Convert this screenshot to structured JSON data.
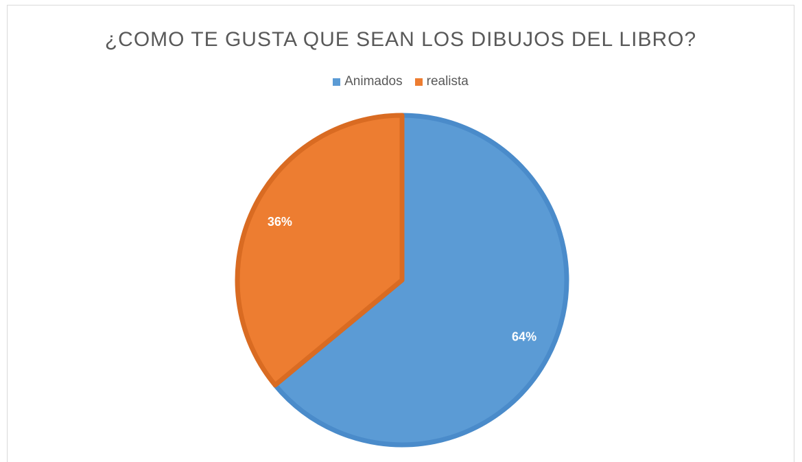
{
  "chart_data": {
    "type": "pie",
    "title": "¿COMO TE GUSTA QUE SEAN LOS DIBUJOS DEL LIBRO?",
    "legend_position": "top",
    "categories": [
      "Animados",
      "realista"
    ],
    "values": [
      64,
      36
    ],
    "data_labels": [
      "64%",
      "36%"
    ],
    "colors": [
      "#5B9BD5",
      "#ED7D31"
    ],
    "border_colors": [
      "#4A8BCA",
      "#D96B22"
    ]
  }
}
